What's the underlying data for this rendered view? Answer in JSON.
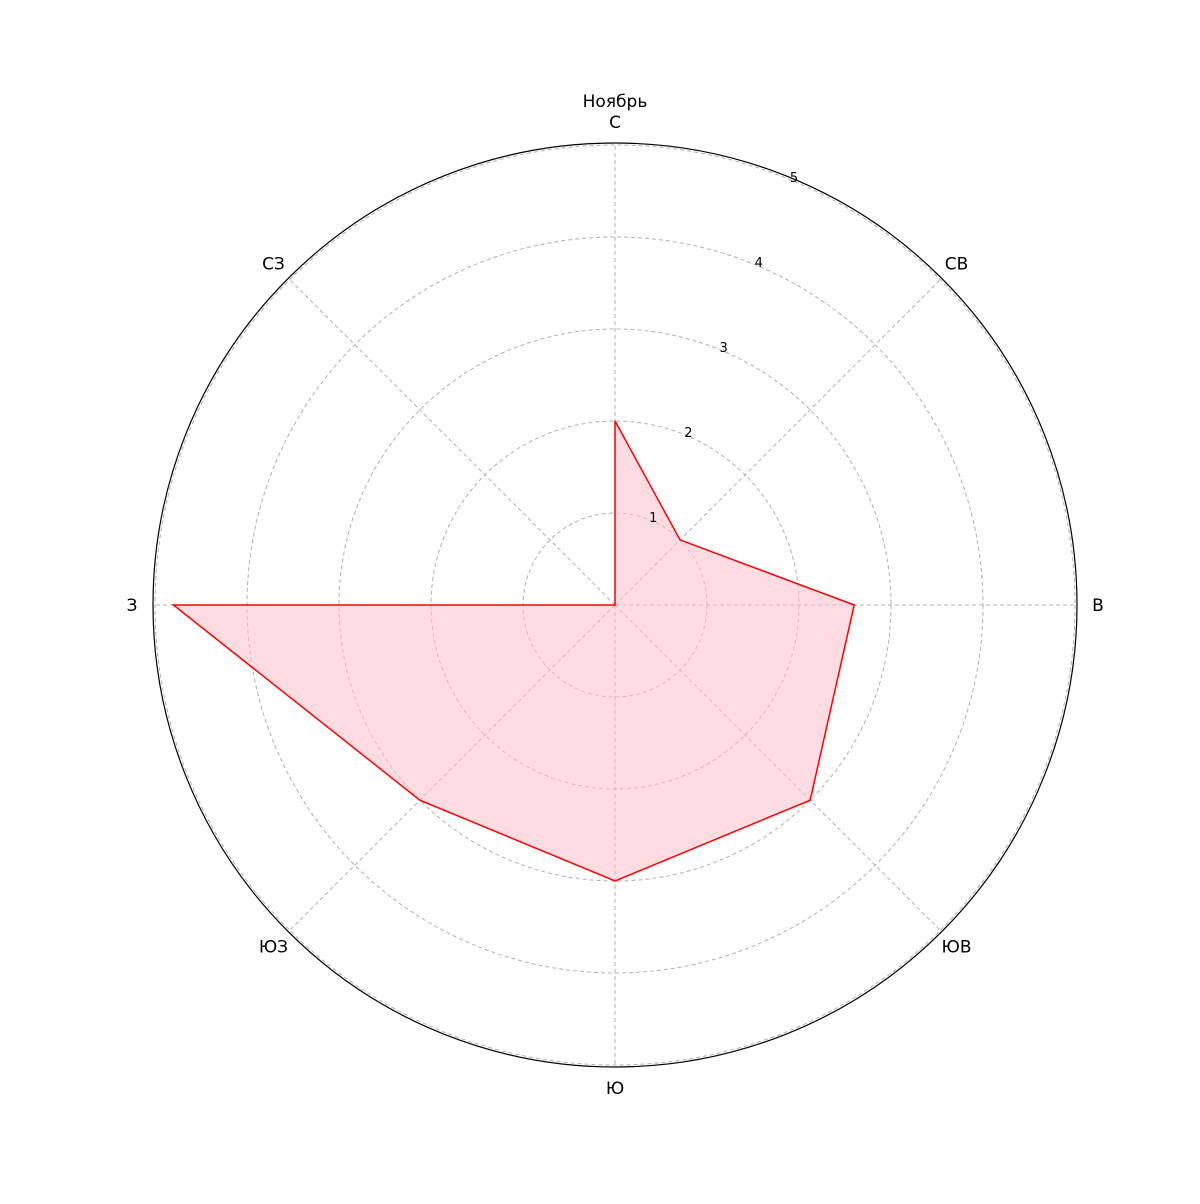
{
  "chart_data": {
    "type": "radar",
    "title": "Ноябрь",
    "categories": [
      "С",
      "СВ",
      "В",
      "ЮВ",
      "Ю",
      "ЮЗ",
      "З",
      "СЗ"
    ],
    "series": [
      {
        "values": [
          2.0,
          1.0,
          2.6,
          3.0,
          3.0,
          3.0,
          4.8,
          0.0
        ]
      }
    ],
    "radial_ticks": [
      "1",
      "2",
      "3",
      "4",
      "5"
    ],
    "rlim": [
      0,
      5
    ],
    "grid": true,
    "legend": "none",
    "colors": {
      "line": "#ff0000",
      "fill": "#ffc0cb",
      "grid": "#b0b0b0",
      "frame": "#000000"
    }
  }
}
